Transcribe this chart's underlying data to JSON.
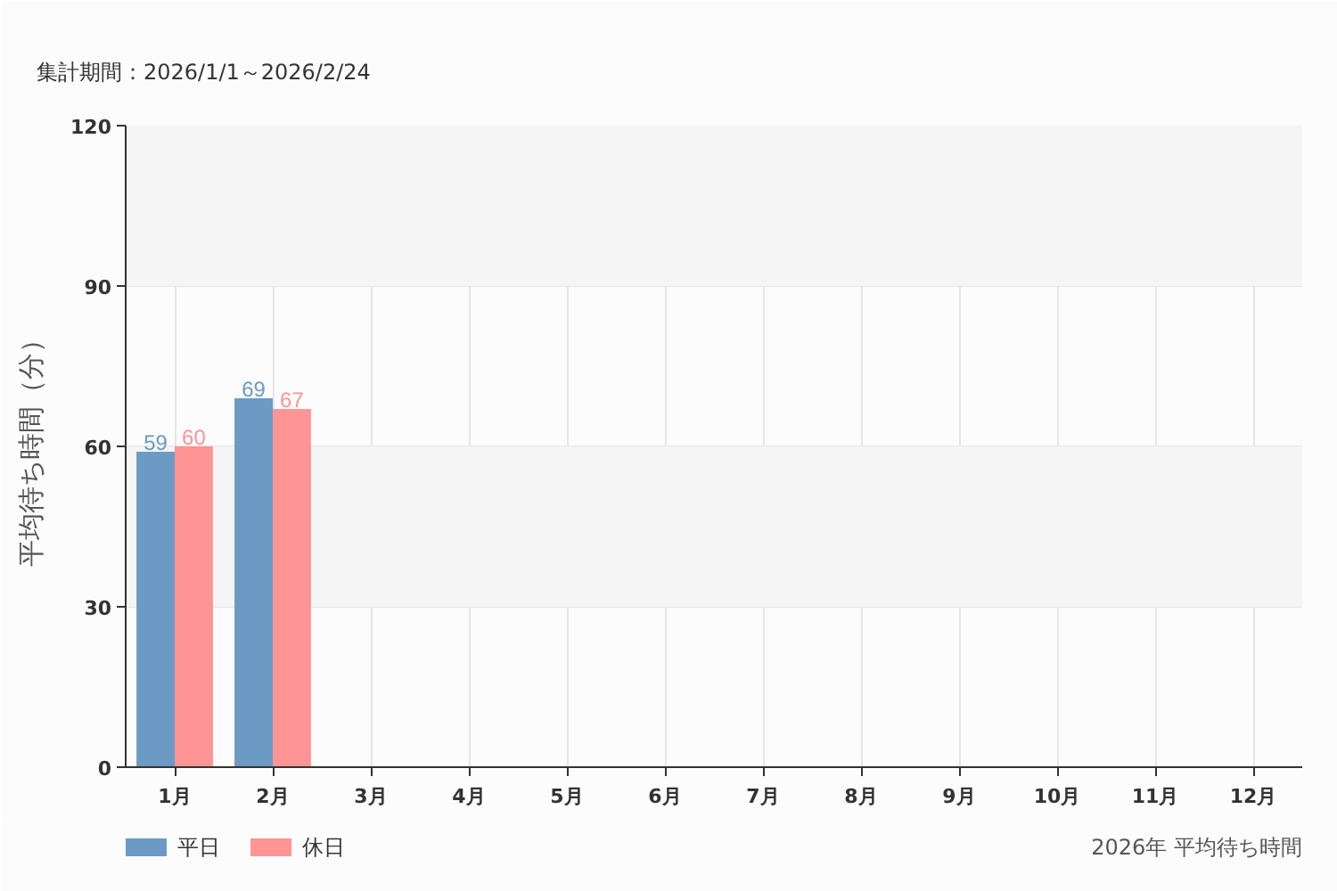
{
  "chart_data": {
    "type": "bar",
    "title": "集計期間：2026/1/1～2026/2/24",
    "ylabel": "平均待ち時間（分）",
    "annotations": [
      "2026年 平均待ち時間"
    ],
    "categories": [
      "1月",
      "2月",
      "3月",
      "4月",
      "5月",
      "6月",
      "7月",
      "8月",
      "9月",
      "10月",
      "11月",
      "12月"
    ],
    "series": [
      {
        "name": "平日",
        "color": "#6b9ac4",
        "values": [
          59,
          69,
          null,
          null,
          null,
          null,
          null,
          null,
          null,
          null,
          null,
          null
        ]
      },
      {
        "name": "休日",
        "color": "#ff9494",
        "values": [
          60,
          67,
          null,
          null,
          null,
          null,
          null,
          null,
          null,
          null,
          null,
          null
        ]
      }
    ],
    "ylim": [
      0,
      120
    ],
    "yticks": [
      0,
      30,
      60,
      90,
      120
    ],
    "grid": true,
    "legend": "bottom left",
    "data_labels": true,
    "bands": [
      {
        "axis": "y",
        "from": 30,
        "to": 60,
        "color": "#f5f5f5"
      },
      {
        "axis": "y",
        "from": 90,
        "to": 120,
        "color": "#f5f5f5"
      }
    ]
  }
}
